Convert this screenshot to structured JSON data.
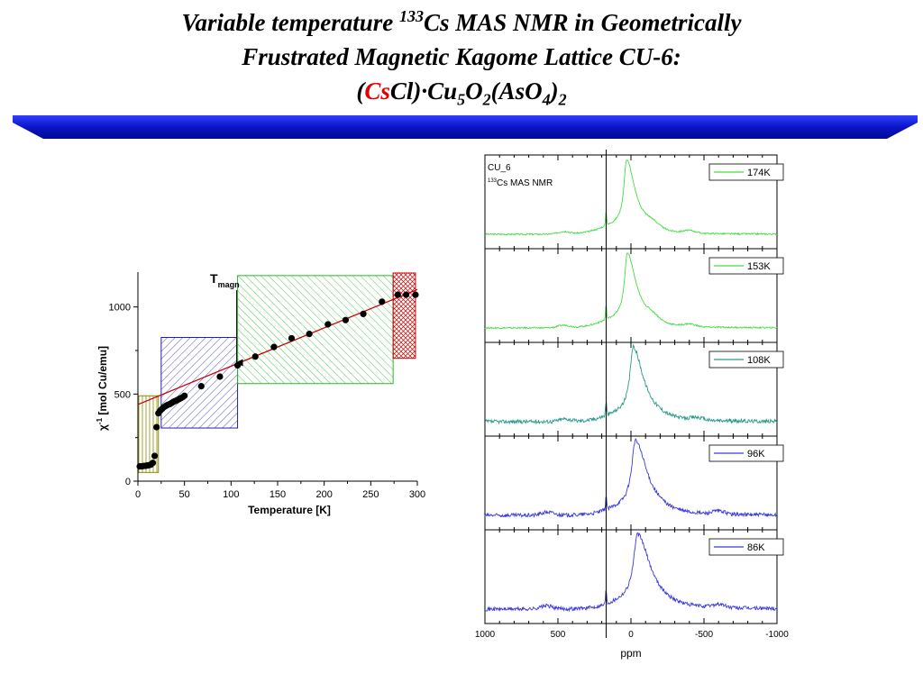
{
  "title": {
    "line1_pre": "Variable temperature ",
    "line1_sup": "133",
    "line1_post": "Cs MAS NMR in Geometrically",
    "line2": "Frustrated Magnetic Kagome Lattice CU-6:",
    "line3_open": "(",
    "line3_red": "Cs",
    "line3_a": "Cl)·Cu",
    "line3_sub1": "5",
    "line3_b": "O",
    "line3_sub2": "2",
    "line3_c": "(AsO",
    "line3_sub3": "4",
    "line3_d": ")",
    "line3_sub4": "2"
  },
  "colors": {
    "title_red": "#e00000",
    "banner": "#0a14c8",
    "fit_line": "#cc0000",
    "points": "#000000",
    "box_yellow": "#8a8a00",
    "box_blue": "#2020b0",
    "box_green": "#22bb22",
    "box_red": "#cc0000",
    "spec_174": "#44dd44",
    "spec_153": "#44dd44",
    "spec_108": "#2a9a8a",
    "spec_96": "#3a3ad8",
    "spec_86": "#3a3ad8"
  },
  "chart_data": [
    {
      "type": "scatter",
      "xlabel": "Temperature [K]",
      "ylabel_symbol": "χ",
      "ylabel_sup": "-1",
      "ylabel_text": " [mol Cu/emu]",
      "xlim": [
        0,
        300
      ],
      "ylim": [
        0,
        1200
      ],
      "xticks": [
        0,
        50,
        100,
        150,
        200,
        250,
        300
      ],
      "yticks": [
        0,
        500,
        1000
      ],
      "annotation": {
        "text": "T",
        "sub": "magn",
        "x": 106
      },
      "points": [
        [
          2,
          85
        ],
        [
          4,
          85
        ],
        [
          6,
          87
        ],
        [
          8,
          88
        ],
        [
          10,
          90
        ],
        [
          12,
          92
        ],
        [
          14,
          95
        ],
        [
          16,
          105
        ],
        [
          18,
          145
        ],
        [
          20,
          310
        ],
        [
          22,
          390
        ],
        [
          24,
          405
        ],
        [
          26,
          415
        ],
        [
          28,
          425
        ],
        [
          30,
          432
        ],
        [
          32,
          438
        ],
        [
          34,
          442
        ],
        [
          36,
          448
        ],
        [
          38,
          455
        ],
        [
          40,
          460
        ],
        [
          42,
          465
        ],
        [
          44,
          470
        ],
        [
          46,
          476
        ],
        [
          48,
          482
        ],
        [
          50,
          490
        ],
        [
          68,
          545
        ],
        [
          88,
          600
        ],
        [
          107,
          665
        ],
        [
          126,
          715
        ],
        [
          146,
          770
        ],
        [
          165,
          820
        ],
        [
          184,
          845
        ],
        [
          204,
          900
        ],
        [
          223,
          925
        ],
        [
          242,
          960
        ],
        [
          262,
          1030
        ],
        [
          279,
          1070
        ],
        [
          288,
          1070
        ],
        [
          298,
          1070
        ]
      ],
      "fit_line": [
        [
          0,
          440
        ],
        [
          300,
          1100
        ]
      ],
      "regions": [
        {
          "name": "yellow",
          "x": [
            0,
            22
          ],
          "y": [
            50,
            490
          ]
        },
        {
          "name": "blue",
          "x": [
            25,
            107
          ],
          "y": [
            305,
            825
          ]
        },
        {
          "name": "green",
          "x": [
            107,
            274
          ],
          "y": [
            560,
            1180
          ]
        },
        {
          "name": "red",
          "x": [
            274,
            298
          ],
          "y": [
            705,
            1195
          ]
        }
      ]
    },
    {
      "type": "line",
      "xlabel": "ppm",
      "xlim": [
        1000,
        -1000
      ],
      "xticks": [
        1000,
        500,
        0,
        -500,
        -1000
      ],
      "reference_line_ppm": 170,
      "annotation_line1": "CU_6",
      "annotation_line2_sup": "133",
      "annotation_line2_text": "Cs MAS NMR",
      "series": [
        {
          "name": "174K",
          "peak_ppm": 30,
          "peak_height": 0.88,
          "width_ppm": 40,
          "noise": 0.012,
          "side_bands": [
            [
              460,
              0.04
            ],
            [
              -150,
              0.06
            ],
            [
              -400,
              0.04
            ]
          ],
          "baseline_slope": 0.0
        },
        {
          "name": "153K",
          "peak_ppm": 25,
          "peak_height": 0.88,
          "width_ppm": 42,
          "noise": 0.012,
          "side_bands": [
            [
              460,
              0.04
            ],
            [
              -150,
              0.06
            ],
            [
              -400,
              0.04
            ]
          ],
          "baseline_slope": 0.0
        },
        {
          "name": "108K",
          "peak_ppm": -15,
          "peak_height": 0.88,
          "width_ppm": 48,
          "noise": 0.03,
          "side_bands": [
            [
              450,
              0.04
            ],
            [
              -450,
              0.04
            ]
          ],
          "baseline_slope": 0.0
        },
        {
          "name": "96K",
          "peak_ppm": -30,
          "peak_height": 0.88,
          "width_ppm": 55,
          "noise": 0.03,
          "side_bands": [
            [
              570,
              0.05
            ],
            [
              -600,
              0.05
            ]
          ],
          "baseline_slope": 0.0
        },
        {
          "name": "86K",
          "peak_ppm": -45,
          "peak_height": 0.88,
          "width_ppm": 60,
          "noise": 0.03,
          "side_bands": [
            [
              580,
              0.05
            ],
            [
              -600,
              0.05
            ]
          ],
          "baseline_slope": 0.0
        }
      ]
    }
  ]
}
